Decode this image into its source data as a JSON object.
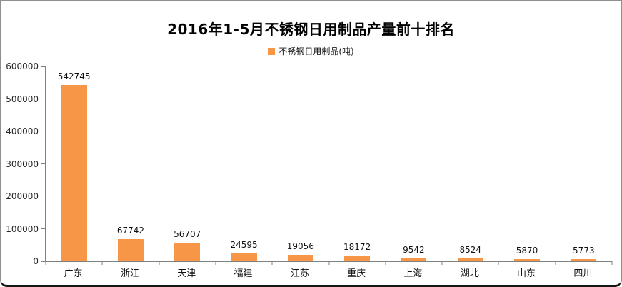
{
  "frame": {
    "background": "#ffffff",
    "border_color": "#8f8f8f",
    "bottom_bar_color": "#161616"
  },
  "chart_data": {
    "type": "bar",
    "title": "2016年1-5月不锈钢日用制品产量前十排名",
    "legend": {
      "label": "不锈钢日用制品(吨)",
      "swatch_color": "#F79646",
      "position": "top-center"
    },
    "categories": [
      "广东",
      "浙江",
      "天津",
      "福建",
      "江苏",
      "重庆",
      "上海",
      "湖北",
      "山东",
      "四川"
    ],
    "values": [
      542745,
      67742,
      56707,
      24595,
      19056,
      18172,
      9542,
      8524,
      5870,
      5773
    ],
    "value_labels_shown": true,
    "xlabel": "",
    "ylabel": "",
    "ylim": [
      0,
      600000
    ],
    "yticks": [
      0,
      100000,
      200000,
      300000,
      400000,
      500000,
      600000
    ],
    "grid": false,
    "bar_color": "#F79646",
    "axis_color": "#808080"
  }
}
